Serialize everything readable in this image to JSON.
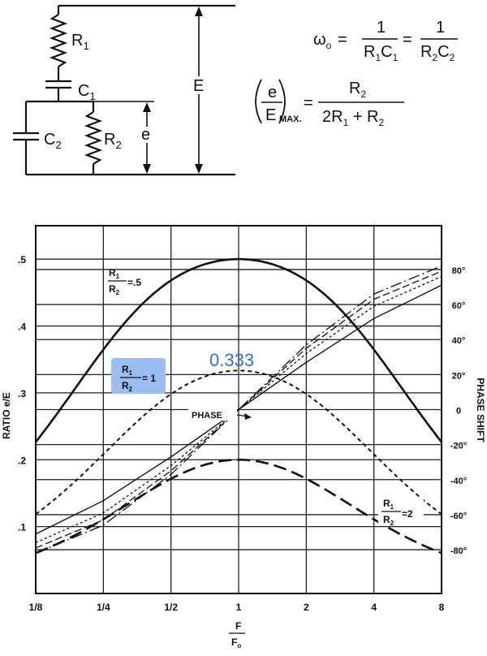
{
  "circuit": {
    "labels": {
      "r1": "R",
      "r1_sub": "1",
      "c1": "C",
      "c1_sub": "1",
      "c2": "C",
      "c2_sub": "2",
      "r2": "R",
      "r2_sub": "2",
      "e_small": "e",
      "e_big": "E"
    },
    "formula1": {
      "lhs": "ω",
      "lhs_sub": "o",
      "eq": "=",
      "n1": "1",
      "d1": "R",
      "d1_sub": "1",
      "d1b": "C",
      "d1b_sub": "1",
      "eq2": "=",
      "n2": "1",
      "d2": "R",
      "d2_sub": "2",
      "d2b": "C",
      "d2b_sub": "2"
    },
    "formula2": {
      "num_e": "e",
      "den_e": "E",
      "max": "MAX.",
      "eq": "=",
      "num": "R",
      "num_sub": "2",
      "den": "2R",
      "den_sub": "1",
      "den_plus": " + R",
      "den_sub2": "2"
    }
  },
  "chart_data": {
    "type": "line",
    "x_scale": "log2",
    "xlim": [
      0.125,
      8
    ],
    "x_ticks": [
      0.125,
      0.25,
      0.5,
      1,
      2,
      4,
      8
    ],
    "x_tick_labels": [
      "1/8",
      "1/4",
      "1/2",
      "1",
      "2",
      "4",
      "8"
    ],
    "xlabel_num": "F",
    "xlabel_den": "F",
    "xlabel_den_sub": "o",
    "ylabel_left": "RATIO e/E",
    "ylim_left": [
      0,
      0.55
    ],
    "y_ticks_left": [
      0.1,
      0.2,
      0.3,
      0.4,
      0.5
    ],
    "y_tick_labels_left": [
      ".1",
      ".2",
      ".3",
      ".4",
      ".5"
    ],
    "ylabel_right": "PHASE SHIFT",
    "ylim_right": [
      -105,
      105
    ],
    "y_ticks_right": [
      -80,
      -60,
      -40,
      -20,
      0,
      20,
      40,
      60,
      80
    ],
    "y_tick_labels_right": [
      "-80°",
      "-60°",
      "-40°",
      "-20°",
      "0",
      "20°",
      "40°",
      "60°",
      "80°"
    ],
    "grid": true,
    "series": [
      {
        "label_num": "R",
        "label_num_sub": "1",
        "label_den": "R",
        "label_den_sub": "2",
        "label_value": "=.5",
        "axis": "left",
        "style": "solid",
        "r_ratio": 0.5,
        "x": [
          0.125,
          0.177,
          0.25,
          0.354,
          0.5,
          0.707,
          1,
          1.414,
          2,
          2.828,
          4,
          5.657,
          8
        ],
        "y": [
          0.218,
          0.281,
          0.342,
          0.398,
          0.447,
          0.486,
          0.5,
          0.486,
          0.447,
          0.398,
          0.342,
          0.281,
          0.218
        ]
      },
      {
        "label_num": "R",
        "label_num_sub": "1",
        "label_den": "R",
        "label_den_sub": "2",
        "label_value": "= 1",
        "axis": "left",
        "style": "dotted",
        "r_ratio": 1,
        "x": [
          0.125,
          0.177,
          0.25,
          0.354,
          0.5,
          0.707,
          1,
          1.414,
          2,
          2.828,
          4,
          5.657,
          8
        ],
        "y": [
          0.126,
          0.165,
          0.206,
          0.249,
          0.289,
          0.321,
          0.333,
          0.321,
          0.289,
          0.249,
          0.206,
          0.165,
          0.126
        ]
      },
      {
        "label_num": "R",
        "label_num_sub": "1",
        "label_den": "R",
        "label_den_sub": "2",
        "label_value": "=2",
        "axis": "left",
        "style": "long-dash",
        "r_ratio": 2,
        "x": [
          0.125,
          0.177,
          0.25,
          0.354,
          0.5,
          0.707,
          1,
          1.414,
          2,
          2.828,
          4,
          5.657,
          8
        ],
        "y": [
          0.06,
          0.083,
          0.108,
          0.136,
          0.163,
          0.187,
          0.2,
          0.187,
          0.163,
          0.136,
          0.108,
          0.083,
          0.06
        ]
      },
      {
        "label": "PHASE",
        "axis": "right",
        "style": "solid-thin",
        "x": [
          0.125,
          0.25,
          0.5,
          1,
          2,
          4,
          8
        ],
        "y": [
          -71,
          -52,
          -27,
          0,
          27,
          52,
          71
        ]
      },
      {
        "axis": "right",
        "style": "dash-thin",
        "x": [
          0.125,
          0.25,
          0.5,
          1,
          2,
          4,
          8
        ],
        "y": [
          -79,
          -63,
          -35,
          0,
          35,
          63,
          79
        ]
      },
      {
        "axis": "right",
        "style": "dot-thin",
        "x": [
          0.125,
          0.25,
          0.5,
          1,
          2,
          4,
          8
        ],
        "y": [
          -76,
          -59,
          -32,
          0,
          32,
          59,
          76
        ]
      },
      {
        "axis": "right",
        "style": "longdash-thin",
        "x": [
          0.125,
          0.25,
          0.5,
          1,
          2,
          4,
          8
        ],
        "y": [
          -82,
          -66,
          -37,
          0,
          37,
          66,
          82
        ]
      }
    ],
    "annotation": {
      "text": "0.333",
      "color": "#2f6fd6"
    },
    "highlight_color": "#9bbdf0"
  }
}
